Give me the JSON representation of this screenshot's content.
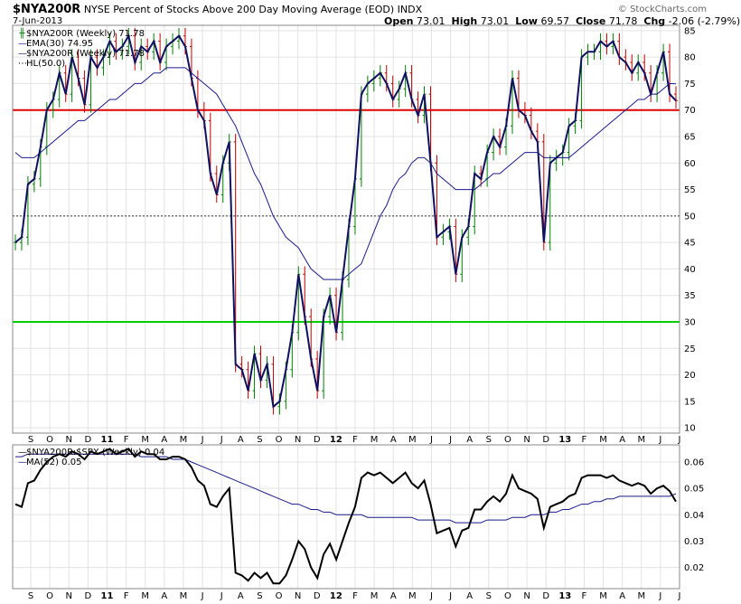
{
  "header": {
    "symbol": "$NYA200R",
    "title": "NYSE Percent of Stocks Above 200 Day Moving Average (EOD)",
    "exchange": "INDX",
    "date": "7-Jun-2013",
    "open_label": "Open",
    "open": "73.01",
    "high_label": "High",
    "high": "73.01",
    "low_label": "Low",
    "low": "69.57",
    "close_label": "Close",
    "close": "71.78",
    "chg_label": "Chg",
    "chg": "-2.06 (-2.79%)",
    "chg_arrow": "▼",
    "watermark": "© StockCharts.com"
  },
  "legend_top": [
    {
      "label": "$NYA200R (Weekly) 71.78",
      "mark": "bars-icon",
      "color": "#1a1a5e"
    },
    {
      "label": "EMA(30) 74.95",
      "mark": "line-icon",
      "color": "#1a1a8c"
    },
    {
      "label": "$NYA200R (Weekly) 71.78",
      "mark": "line-icon",
      "color": "#1a1a5e"
    },
    {
      "label": "HL(50.0)",
      "mark": "dots-icon",
      "color": "#000000"
    }
  ],
  "legend_bottom": [
    {
      "label": "$NYA200R:$SPX (Weekly) 0.04",
      "mark": "line-icon",
      "color": "#000000"
    },
    {
      "label": "MA(52) 0.05",
      "mark": "line-icon",
      "color": "#1a1a8c"
    }
  ],
  "colors": {
    "up": "#008000",
    "down": "#c00000",
    "close_line": "#101060",
    "ema": "#1a1a8c",
    "ratio": "#000000",
    "ma": "#1a1a8c",
    "hline_70": "#e00000",
    "hline_30": "#00d000"
  },
  "chart_data": [
    {
      "type": "line",
      "title": "$NYA200R NYSE Percent of Stocks Above 200 Day Moving Average (EOD) INDX",
      "x_tick_labels": [
        "S",
        "O",
        "N",
        "D",
        "11",
        "F",
        "M",
        "A",
        "M",
        "J",
        "J",
        "A",
        "S",
        "O",
        "N",
        "D",
        "12",
        "F",
        "M",
        "A",
        "M",
        "J",
        "J",
        "A",
        "S",
        "O",
        "N",
        "D",
        "13",
        "F",
        "M",
        "A",
        "M",
        "J",
        "J"
      ],
      "y_ticks": [
        10,
        15,
        20,
        25,
        30,
        35,
        40,
        45,
        50,
        55,
        60,
        65,
        70,
        75,
        80,
        85
      ],
      "ylim": [
        9,
        86
      ],
      "horizontal_lines": [
        {
          "value": 70,
          "color": "red"
        },
        {
          "value": 50,
          "style": "dotted"
        },
        {
          "value": 30,
          "color": "green"
        }
      ],
      "series": [
        {
          "name": "$NYA200R (Weekly)",
          "style": "ohlc+close-line",
          "values": [
            45,
            46,
            56,
            57,
            63,
            70,
            72,
            77,
            73,
            80,
            76,
            71,
            80,
            78,
            80,
            83,
            81,
            82,
            84,
            79,
            82,
            81,
            83,
            79,
            82,
            83,
            84,
            82,
            76,
            70,
            68,
            58,
            54,
            60,
            64,
            22,
            21,
            17,
            24,
            19,
            22,
            14,
            15,
            21,
            28,
            39,
            31,
            23,
            17,
            31,
            35,
            28,
            38,
            48,
            57,
            73,
            75,
            76,
            77,
            75,
            72,
            74,
            77,
            72,
            69,
            73,
            60,
            46,
            47,
            48,
            39,
            46,
            48,
            58,
            57,
            62,
            65,
            63,
            67,
            76,
            70,
            69,
            66,
            64,
            45,
            60,
            61,
            62,
            67,
            68,
            80,
            81,
            81,
            83,
            82,
            83,
            80,
            79,
            77,
            79,
            77,
            73,
            77,
            81,
            73,
            71.78
          ]
        },
        {
          "name": "EMA(30)",
          "values": [
            62,
            61,
            61,
            61,
            62,
            63,
            64,
            65,
            66,
            67,
            68,
            68,
            69,
            70,
            71,
            72,
            72,
            73,
            74,
            75,
            75,
            76,
            77,
            77,
            78,
            78,
            78,
            78,
            77,
            76,
            75,
            74,
            73,
            71,
            69,
            67,
            64,
            61,
            58,
            56,
            53,
            50,
            48,
            46,
            45,
            44,
            42,
            40,
            39,
            38,
            38,
            38,
            38,
            39,
            40,
            41,
            44,
            47,
            50,
            52,
            55,
            57,
            58,
            60,
            61,
            61,
            60,
            58,
            57,
            56,
            55,
            55,
            55,
            55,
            56,
            57,
            58,
            58,
            59,
            60,
            61,
            62,
            62,
            62,
            61,
            61,
            61,
            61,
            61,
            62,
            63,
            64,
            65,
            66,
            67,
            68,
            69,
            70,
            71,
            72,
            72,
            73,
            73,
            74,
            75,
            74.95
          ]
        }
      ]
    },
    {
      "type": "line",
      "title": "$NYA200R:$SPX (Weekly)",
      "y_ticks": [
        0.02,
        0.03,
        0.04,
        0.05,
        0.06
      ],
      "ylim": [
        0.012,
        0.0665
      ],
      "series": [
        {
          "name": "$NYA200R:$SPX (Weekly)",
          "values": [
            0.044,
            0.043,
            0.052,
            0.053,
            0.057,
            0.06,
            0.062,
            0.063,
            0.062,
            0.064,
            0.063,
            0.061,
            0.064,
            0.063,
            0.064,
            0.065,
            0.063,
            0.064,
            0.065,
            0.062,
            0.064,
            0.063,
            0.063,
            0.061,
            0.061,
            0.062,
            0.062,
            0.061,
            0.058,
            0.053,
            0.051,
            0.044,
            0.043,
            0.047,
            0.05,
            0.018,
            0.017,
            0.015,
            0.018,
            0.016,
            0.018,
            0.014,
            0.014,
            0.017,
            0.023,
            0.03,
            0.027,
            0.02,
            0.016,
            0.025,
            0.029,
            0.023,
            0.03,
            0.037,
            0.043,
            0.054,
            0.056,
            0.055,
            0.056,
            0.054,
            0.052,
            0.054,
            0.056,
            0.052,
            0.05,
            0.053,
            0.044,
            0.033,
            0.034,
            0.035,
            0.028,
            0.034,
            0.035,
            0.042,
            0.042,
            0.045,
            0.047,
            0.045,
            0.048,
            0.055,
            0.05,
            0.049,
            0.048,
            0.046,
            0.035,
            0.043,
            0.044,
            0.045,
            0.047,
            0.048,
            0.054,
            0.055,
            0.055,
            0.055,
            0.054,
            0.055,
            0.053,
            0.052,
            0.051,
            0.052,
            0.051,
            0.048,
            0.05,
            0.051,
            0.049,
            0.045
          ]
        },
        {
          "name": "MA(52)",
          "values": [
            0.062,
            0.062,
            0.063,
            0.063,
            0.063,
            0.063,
            0.063,
            0.063,
            0.063,
            0.063,
            0.063,
            0.063,
            0.063,
            0.063,
            0.063,
            0.063,
            0.063,
            0.063,
            0.063,
            0.063,
            0.062,
            0.062,
            0.062,
            0.062,
            0.062,
            0.061,
            0.061,
            0.061,
            0.06,
            0.059,
            0.058,
            0.057,
            0.056,
            0.055,
            0.054,
            0.053,
            0.052,
            0.051,
            0.05,
            0.049,
            0.048,
            0.047,
            0.046,
            0.045,
            0.044,
            0.044,
            0.043,
            0.042,
            0.042,
            0.041,
            0.041,
            0.04,
            0.04,
            0.04,
            0.04,
            0.04,
            0.039,
            0.039,
            0.039,
            0.039,
            0.039,
            0.039,
            0.039,
            0.039,
            0.038,
            0.038,
            0.038,
            0.038,
            0.038,
            0.038,
            0.037,
            0.037,
            0.037,
            0.037,
            0.037,
            0.038,
            0.038,
            0.038,
            0.038,
            0.039,
            0.039,
            0.039,
            0.04,
            0.04,
            0.04,
            0.041,
            0.041,
            0.042,
            0.042,
            0.043,
            0.044,
            0.044,
            0.045,
            0.045,
            0.046,
            0.046,
            0.047,
            0.047,
            0.047,
            0.047,
            0.047,
            0.047,
            0.047,
            0.047,
            0.047,
            0.048
          ]
        }
      ]
    }
  ]
}
